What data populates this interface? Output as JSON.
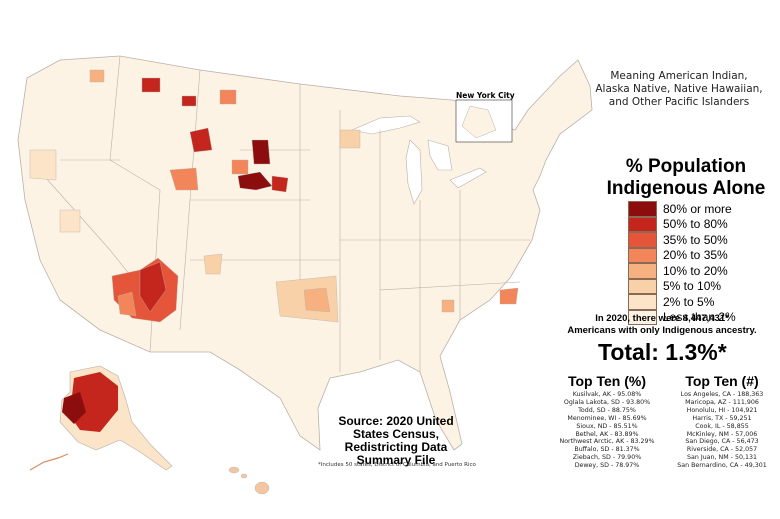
{
  "map": {
    "note_lines": [
      "Meaning American Indian,",
      "Alaska Native, Native Hawaiian,",
      "and Other Pacific Islanders"
    ],
    "inset_label": "New York City",
    "legend_title_lines": [
      "% Population",
      "Indigenous Alone"
    ],
    "legend": [
      {
        "label": "80% or more",
        "color": "#8b0d0d"
      },
      {
        "label": "50% to 80%",
        "color": "#c4251c"
      },
      {
        "label": "35% to 50%",
        "color": "#e5553a"
      },
      {
        "label": "20% to 35%",
        "color": "#f2865a"
      },
      {
        "label": "10% to 20%",
        "color": "#f7b07f"
      },
      {
        "label": "5% to 10%",
        "color": "#f9d1a8"
      },
      {
        "label": "2% to 5%",
        "color": "#fbe4c8"
      },
      {
        "label": "Less than 2%",
        "color": "#fdf3e4"
      }
    ],
    "stat_lines": [
      "In 2020, there were 4,447,431*",
      "Americans with only Indigenous ancestry."
    ],
    "total": "Total: 1.3%*",
    "top_pct_title": "Top Ten (%)",
    "top_pct": [
      "Kusilvak, AK - 95.08%",
      "Oglala Lakota, SD - 93.80%",
      "Todd, SD - 88.75%",
      "Menominee, WI - 85.69%",
      "Sioux, ND - 85.51%",
      "Bethel, AK - 83.89%",
      "Northwest Arctic, AK - 83.29%",
      "Buffalo, SD - 81.37%",
      "Ziebach, SD - 79.90%",
      "Dewey, SD - 78.97%"
    ],
    "top_num_title": "Top Ten (#)",
    "top_num": [
      "Los Angeles, CA - 188,363",
      "Maricopa, AZ - 111,906",
      "Honolulu, HI - 104,921",
      "Harris, TX - 59,251",
      "Cook, IL - 58,855",
      "McKinley, NM - 57,006",
      "San Diego, CA - 56,473",
      "Riverside, CA - 52,057",
      "San Juan, NM - 50,131",
      "San Bernardino, CA - 49,301"
    ],
    "source_lines": [
      "Source: 2020 United",
      "States Census,",
      "Redistricting Data",
      "Summary File"
    ],
    "footnote": "*Includes 50 states, District of Columbia, and Puerto Rico",
    "colors": {
      "land": "#fdf3e4",
      "border": "#b9b1a8",
      "water": "#ffffff"
    }
  }
}
